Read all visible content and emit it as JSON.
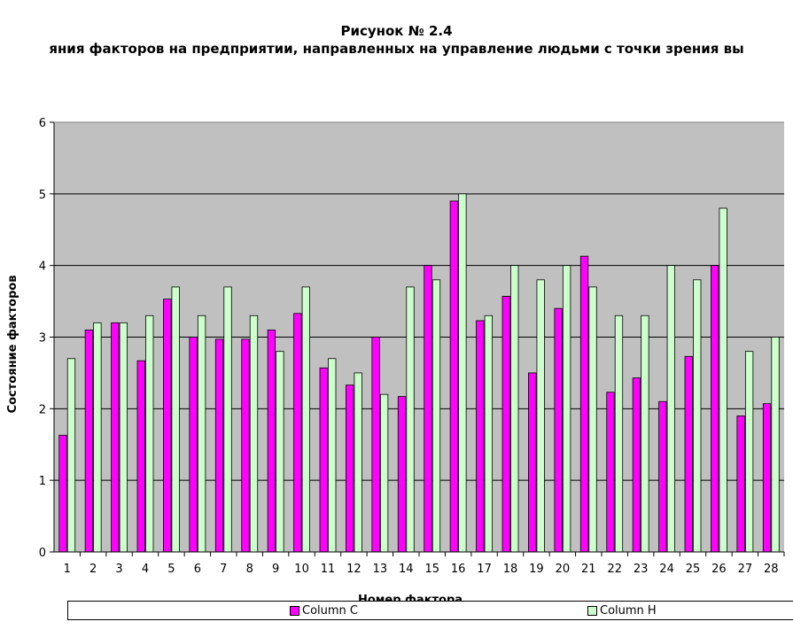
{
  "chart_data": {
    "type": "bar",
    "title": "Рисунок № 2.4",
    "subtitle": "яния факторов на предприятии, направленных на управление людьми с точки зрения вы",
    "xlabel": "Номер фактора",
    "ylabel": "Состояние факторов",
    "ylim": [
      0,
      6
    ],
    "yticks": [
      "0",
      "1",
      "2",
      "3",
      "4",
      "5",
      "6"
    ],
    "grid": true,
    "legend_position": "bottom",
    "categories": [
      "1",
      "2",
      "3",
      "4",
      "5",
      "6",
      "7",
      "8",
      "9",
      "10",
      "11",
      "12",
      "13",
      "14",
      "15",
      "16",
      "17",
      "18",
      "19",
      "20",
      "21",
      "22",
      "23",
      "24",
      "25",
      "26",
      "27",
      "28"
    ],
    "series": [
      {
        "name": "Column C",
        "color": "#ff00ff",
        "values": [
          1.63,
          3.1,
          3.2,
          2.67,
          3.53,
          3.0,
          2.97,
          2.97,
          3.1,
          3.33,
          2.57,
          2.33,
          3.0,
          2.17,
          4.0,
          4.9,
          3.23,
          3.57,
          2.5,
          3.4,
          4.13,
          2.23,
          2.43,
          2.1,
          2.73,
          4.0,
          1.9,
          2.07
        ]
      },
      {
        "name": "Column H",
        "color": "#ccffcc",
        "values": [
          2.7,
          3.2,
          3.2,
          3.3,
          3.7,
          3.3,
          3.7,
          3.3,
          2.8,
          3.7,
          2.7,
          2.5,
          2.2,
          3.7,
          3.8,
          5.0,
          3.3,
          4.0,
          3.8,
          4.0,
          3.7,
          3.3,
          3.3,
          4.0,
          3.8,
          4.8,
          2.8,
          3.0
        ]
      }
    ]
  }
}
